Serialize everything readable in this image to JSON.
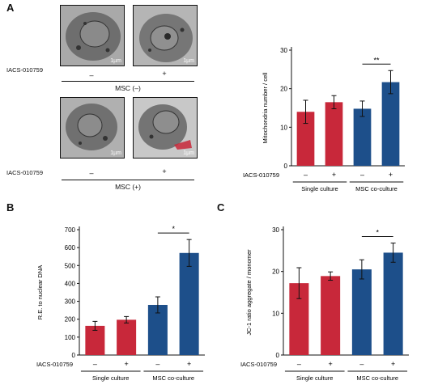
{
  "panels": {
    "a": "A",
    "b": "B",
    "c": "C"
  },
  "micrographs": {
    "drug_label": "IACS-010759",
    "minus": "–",
    "plus": "+",
    "scale_bar_label": "1µm",
    "group_top": "MSC (–)",
    "group_bottom": "MSC (+)"
  },
  "colors": {
    "red": "#c8283a",
    "blue": "#1d4f8a"
  },
  "charts": [
    {
      "ylabel": "Mitochondria number / cell",
      "yticks": [
        "0",
        "10",
        "20",
        "30"
      ],
      "row_label": "IACS-010759",
      "treat_labels": [
        "–",
        "+",
        "–",
        "+"
      ],
      "groups": [
        "Single culture",
        "MSC co-culture"
      ],
      "sig": "**"
    },
    {
      "ylabel": "R.E. to nuclear DNA",
      "yticks": [
        "0",
        "100",
        "200",
        "300",
        "400",
        "500",
        "600",
        "700"
      ],
      "row_label": "IACS-010759",
      "treat_labels": [
        "–",
        "+",
        "–",
        "+"
      ],
      "groups": [
        "Single culture",
        "MSC co-culture"
      ],
      "sig": "*"
    },
    {
      "ylabel": "JC-1 ratio aggregate / monomer",
      "yticks": [
        "0",
        "10",
        "20",
        "30"
      ],
      "row_label": "IACS-010759",
      "treat_labels": [
        "–",
        "+",
        "–",
        "+"
      ],
      "groups": [
        "Single culture",
        "MSC co-culture"
      ],
      "sig": "*"
    }
  ],
  "chart_data": [
    {
      "type": "bar",
      "categories": [
        "Single culture –",
        "Single culture +",
        "MSC co-culture –",
        "MSC co-culture +"
      ],
      "values": [
        14,
        16.5,
        14.8,
        21.7
      ],
      "errors": [
        3,
        1.7,
        2,
        3
      ],
      "ylabel": "Mitochondria number / cell",
      "ylim": [
        0,
        30
      ],
      "significance": "**"
    },
    {
      "type": "bar",
      "categories": [
        "Single culture –",
        "Single culture +",
        "MSC co-culture –",
        "MSC co-culture +"
      ],
      "values": [
        163,
        197,
        280,
        570
      ],
      "errors": [
        25,
        18,
        45,
        75
      ],
      "ylabel": "R.E. to nuclear DNA",
      "ylim": [
        0,
        700
      ],
      "significance": "*"
    },
    {
      "type": "bar",
      "categories": [
        "Single culture –",
        "Single culture +",
        "MSC co-culture –",
        "MSC co-culture +"
      ],
      "values": [
        17.2,
        18.9,
        20.5,
        24.5
      ],
      "errors": [
        3.7,
        1,
        2.3,
        2.3
      ],
      "ylabel": "JC-1 ratio aggregate / monomer",
      "ylim": [
        0,
        30
      ],
      "significance": "*"
    }
  ]
}
